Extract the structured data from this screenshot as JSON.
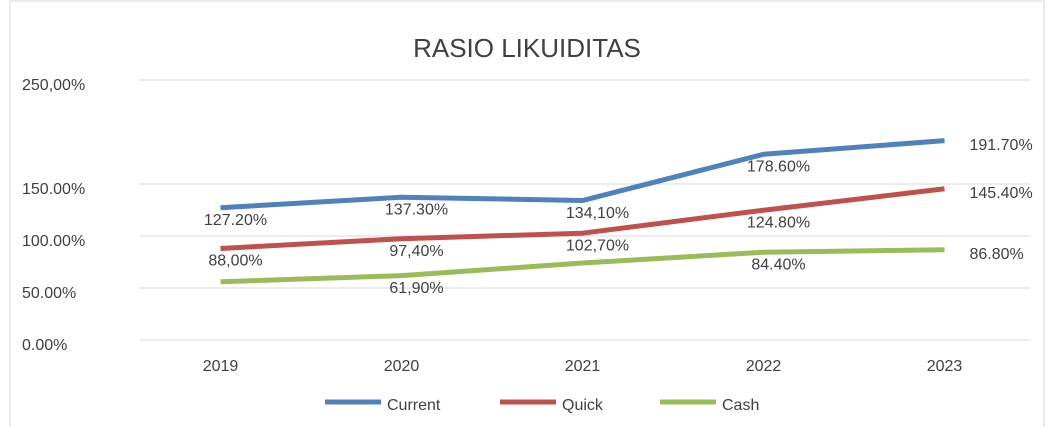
{
  "chart_data": {
    "type": "line",
    "title": "RASIO LIKUIDITAS",
    "categories": [
      "2019",
      "2020",
      "2021",
      "2022",
      "2023"
    ],
    "series": [
      {
        "name": "Current",
        "color": "#4f81bd",
        "values": [
          127.2,
          137.3,
          134.1,
          178.6,
          191.7
        ],
        "value_labels": [
          "127.20%",
          "137.30%",
          "134,10%",
          "178.60%",
          "191.70%"
        ]
      },
      {
        "name": "Quick",
        "color": "#c0504d",
        "values": [
          88,
          97.4,
          102.7,
          124.8,
          145.4
        ],
        "value_labels": [
          "88,00%",
          "97,40%",
          "102,70%",
          "124.80%",
          "145.40%"
        ]
      },
      {
        "name": "Cash",
        "color": "#9bbb59",
        "values": [
          56,
          61.9,
          74,
          84.4,
          86.8
        ],
        "value_labels": [
          null,
          "61,90%",
          null,
          "84.40%",
          "86.80%"
        ]
      }
    ],
    "ylim": [
      0,
      250
    ],
    "yticks": [
      {
        "value": 0,
        "label": "0.00%"
      },
      {
        "value": 50,
        "label": "50.00%"
      },
      {
        "value": 100,
        "label": "100.00%"
      },
      {
        "value": 150,
        "label": "150.00%"
      },
      {
        "value": 250,
        "label": "250,00%"
      }
    ],
    "grid": true,
    "legend": "bottom"
  }
}
